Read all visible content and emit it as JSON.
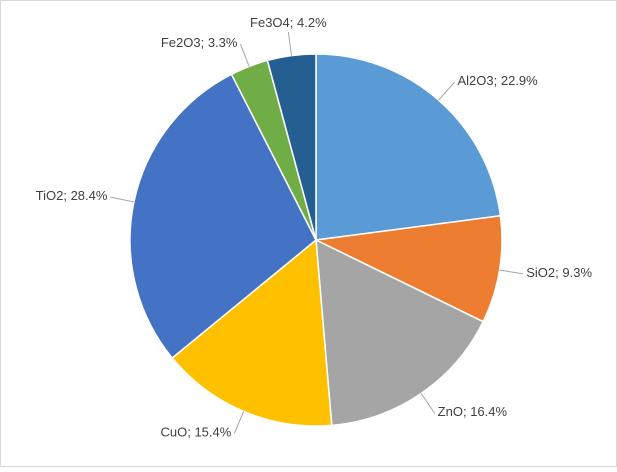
{
  "chart_data": {
    "type": "pie",
    "categories": [
      "Al2O3",
      "SiO2",
      "ZnO",
      "CuO",
      "TiO2",
      "Fe2O3",
      "Fe3O4"
    ],
    "values": [
      22.9,
      9.3,
      16.4,
      15.4,
      28.4,
      3.3,
      4.2
    ],
    "value_labels": [
      "22.9%",
      "9.3%",
      "16.4%",
      "15.4%",
      "28.4%",
      "3.3%",
      "4.2%"
    ],
    "label_separator": "; ",
    "colors": [
      "#5b9bd5",
      "#ed7d31",
      "#a5a5a5",
      "#ffc000",
      "#4472c4",
      "#70ad47",
      "#255e91"
    ]
  }
}
